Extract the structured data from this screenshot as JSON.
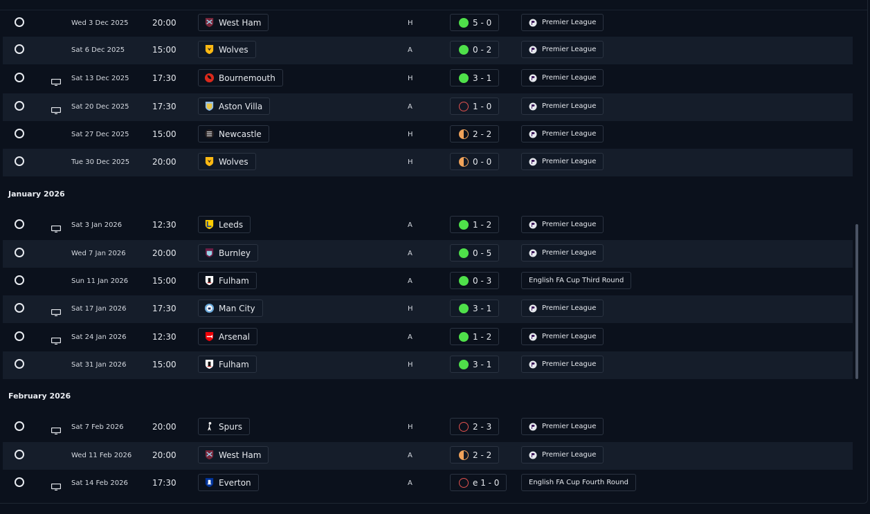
{
  "sections": [
    {
      "label": "",
      "top": 0
    },
    {
      "label": "January 2026"
    },
    {
      "label": "February 2026"
    }
  ],
  "fixtures": [
    {
      "date": "Wed 3 Dec 2025",
      "time": "20:00",
      "opponent": "West Ham",
      "crest": "west-ham",
      "venue": "H",
      "result": "win",
      "score": "5 - 0",
      "competition": "Premier League",
      "pl": true,
      "tv": false
    },
    {
      "date": "Sat 6 Dec 2025",
      "time": "15:00",
      "opponent": "Wolves",
      "crest": "wolves",
      "venue": "A",
      "result": "win",
      "score": "0 - 2",
      "competition": "Premier League",
      "pl": true,
      "tv": false
    },
    {
      "date": "Sat 13 Dec 2025",
      "time": "17:30",
      "opponent": "Bournemouth",
      "crest": "bournemouth",
      "venue": "H",
      "result": "win",
      "score": "3 - 1",
      "competition": "Premier League",
      "pl": true,
      "tv": true
    },
    {
      "date": "Sat 20 Dec 2025",
      "time": "17:30",
      "opponent": "Aston Villa",
      "crest": "aston-villa",
      "venue": "A",
      "result": "loss",
      "score": "1 - 0",
      "competition": "Premier League",
      "pl": true,
      "tv": true
    },
    {
      "date": "Sat 27 Dec 2025",
      "time": "15:00",
      "opponent": "Newcastle",
      "crest": "newcastle",
      "venue": "H",
      "result": "draw",
      "score": "2 - 2",
      "competition": "Premier League",
      "pl": true,
      "tv": false
    },
    {
      "date": "Tue 30 Dec 2025",
      "time": "20:00",
      "opponent": "Wolves",
      "crest": "wolves",
      "venue": "H",
      "result": "draw",
      "score": "0 - 0",
      "competition": "Premier League",
      "pl": true,
      "tv": false
    },
    {
      "date": "Sat 3 Jan 2026",
      "time": "12:30",
      "opponent": "Leeds",
      "crest": "leeds",
      "venue": "A",
      "result": "win",
      "score": "1 - 2",
      "competition": "Premier League",
      "pl": true,
      "tv": true
    },
    {
      "date": "Wed 7 Jan 2026",
      "time": "20:00",
      "opponent": "Burnley",
      "crest": "burnley",
      "venue": "A",
      "result": "win",
      "score": "0 - 5",
      "competition": "Premier League",
      "pl": true,
      "tv": false
    },
    {
      "date": "Sun 11 Jan 2026",
      "time": "15:00",
      "opponent": "Fulham",
      "crest": "fulham",
      "venue": "A",
      "result": "win",
      "score": "0 - 3",
      "competition": "English FA Cup Third Round",
      "pl": false,
      "tv": false
    },
    {
      "date": "Sat 17 Jan 2026",
      "time": "17:30",
      "opponent": "Man City",
      "crest": "man-city",
      "venue": "H",
      "result": "win",
      "score": "3 - 1",
      "competition": "Premier League",
      "pl": true,
      "tv": true
    },
    {
      "date": "Sat 24 Jan 2026",
      "time": "12:30",
      "opponent": "Arsenal",
      "crest": "arsenal",
      "venue": "A",
      "result": "win",
      "score": "1 - 2",
      "competition": "Premier League",
      "pl": true,
      "tv": true
    },
    {
      "date": "Sat 31 Jan 2026",
      "time": "15:00",
      "opponent": "Fulham",
      "crest": "fulham",
      "venue": "H",
      "result": "win",
      "score": "3 - 1",
      "competition": "Premier League",
      "pl": true,
      "tv": false
    },
    {
      "date": "Sat 7 Feb 2026",
      "time": "20:00",
      "opponent": "Spurs",
      "crest": "spurs",
      "venue": "H",
      "result": "loss",
      "score": "2 - 3",
      "competition": "Premier League",
      "pl": true,
      "tv": true
    },
    {
      "date": "Wed 11 Feb 2026",
      "time": "20:00",
      "opponent": "West Ham",
      "crest": "west-ham",
      "venue": "A",
      "result": "draw",
      "score": "2 - 2",
      "competition": "Premier League",
      "pl": true,
      "tv": false
    },
    {
      "date": "Sat 14 Feb 2026",
      "time": "17:30",
      "opponent": "Everton",
      "crest": "everton",
      "venue": "A",
      "result": "loss",
      "score": "e 1 - 0",
      "competition": "English FA Cup Fourth Round",
      "pl": false,
      "tv": true
    }
  ],
  "colors": {
    "win": "#4fe04a",
    "loss": "#e3524f",
    "draw": "#f0a35a"
  }
}
